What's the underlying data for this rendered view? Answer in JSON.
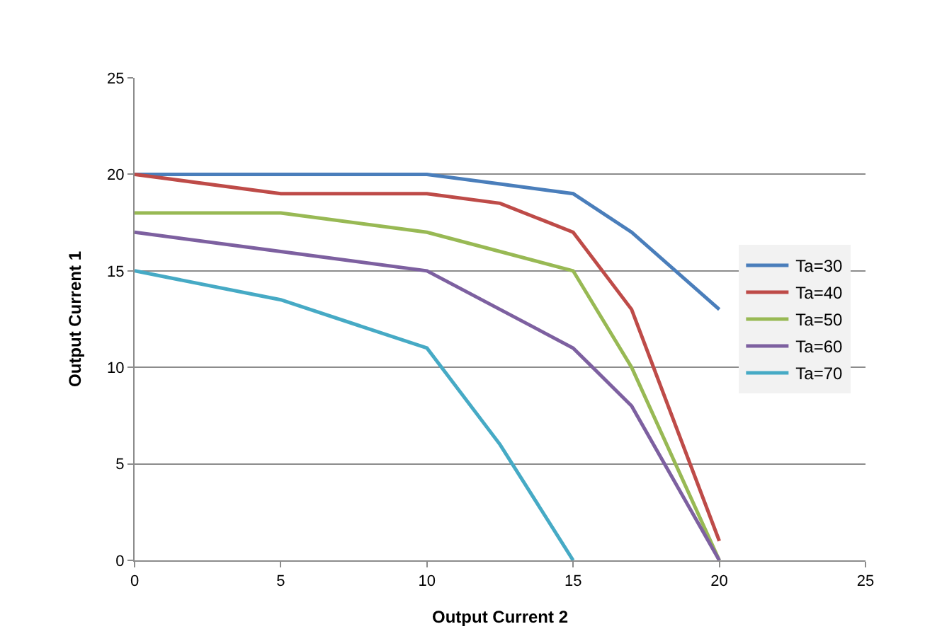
{
  "chart_data": {
    "type": "line",
    "xlabel": "Output Current 2",
    "ylabel": "Output Current 1",
    "x": [
      0,
      5,
      10,
      12.5,
      15,
      17,
      20
    ],
    "series": [
      {
        "name": "Ta=30",
        "color": "#4a7ebb",
        "values": [
          20,
          20,
          20,
          19.5,
          19,
          17,
          13
        ]
      },
      {
        "name": "Ta=40",
        "color": "#be4b48",
        "values": [
          20,
          19,
          19,
          18.5,
          17,
          13,
          1
        ]
      },
      {
        "name": "Ta=50",
        "color": "#98b954",
        "values": [
          18,
          18,
          17,
          16,
          15,
          10,
          0
        ]
      },
      {
        "name": "Ta=60",
        "color": "#7d60a0",
        "values": [
          17,
          16,
          15,
          13,
          11,
          8,
          0
        ]
      },
      {
        "name": "Ta=70",
        "color": "#46aac5",
        "x": [
          0,
          5,
          10,
          12.5,
          15
        ],
        "values": [
          15,
          13.5,
          11,
          6,
          0
        ]
      }
    ],
    "xlim": [
      0,
      25
    ],
    "xticks": [
      0,
      5,
      10,
      15,
      20,
      25
    ],
    "ylim": [
      0,
      25
    ],
    "yticks": [
      0,
      5,
      10,
      15,
      20,
      25
    ],
    "grid": "y",
    "legend": "right",
    "marker": "none",
    "line_style": "solid"
  }
}
